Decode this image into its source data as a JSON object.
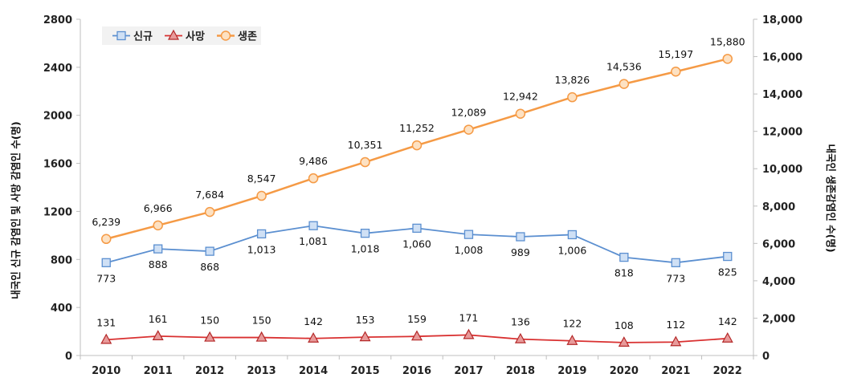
{
  "chart_data": {
    "type": "line",
    "categories": [
      "2010",
      "2011",
      "2012",
      "2013",
      "2014",
      "2015",
      "2016",
      "2017",
      "2018",
      "2019",
      "2020",
      "2021",
      "2022"
    ],
    "series": [
      {
        "name": "신규",
        "axis": "left",
        "color": "#5b8fd0",
        "marker": "square",
        "values": [
          773,
          888,
          868,
          1013,
          1081,
          1018,
          1060,
          1008,
          989,
          1006,
          818,
          773,
          825
        ],
        "labels": [
          "773",
          "888",
          "868",
          "1,013",
          "1,081",
          "1,018",
          "1,060",
          "1,008",
          "989",
          "1,006",
          "818",
          "773",
          "825"
        ]
      },
      {
        "name": "사망",
        "axis": "left",
        "color": "#d93030",
        "marker": "triangle",
        "values": [
          131,
          161,
          150,
          150,
          142,
          153,
          159,
          171,
          136,
          122,
          108,
          112,
          142
        ],
        "labels": [
          "131",
          "161",
          "150",
          "150",
          "142",
          "153",
          "159",
          "171",
          "136",
          "122",
          "108",
          "112",
          "142"
        ]
      },
      {
        "name": "생존",
        "axis": "right",
        "color": "#f59a45",
        "marker": "circle",
        "values": [
          6239,
          6966,
          7684,
          8547,
          9486,
          10351,
          11252,
          12089,
          12942,
          13826,
          14536,
          15197,
          15880
        ],
        "labels": [
          "6,239",
          "6,966",
          "7,684",
          "8,547",
          "9,486",
          "10,351",
          "11,252",
          "12,089",
          "12,942",
          "13,826",
          "14,536",
          "15,197",
          "15,880"
        ]
      }
    ],
    "y_left": {
      "label": "내국인 신규 감염인 및 사망 감염인 수(명)",
      "range": [
        0,
        2800
      ],
      "ticks": [
        0,
        400,
        800,
        1200,
        1600,
        2000,
        2400,
        2800
      ],
      "tick_labels": [
        "0",
        "400",
        "800",
        "1200",
        "1600",
        "2000",
        "2400",
        "2800"
      ]
    },
    "y_right": {
      "label": "내국인 생존감염인 수(명)",
      "range": [
        0,
        18000
      ],
      "ticks": [
        0,
        2000,
        4000,
        6000,
        8000,
        10000,
        12000,
        14000,
        16000,
        18000
      ],
      "tick_labels": [
        "0",
        "2,000",
        "4,000",
        "6,000",
        "8,000",
        "10,000",
        "12,000",
        "14,000",
        "16,000",
        "18,000"
      ]
    },
    "grid": false,
    "legend": "top-left"
  }
}
